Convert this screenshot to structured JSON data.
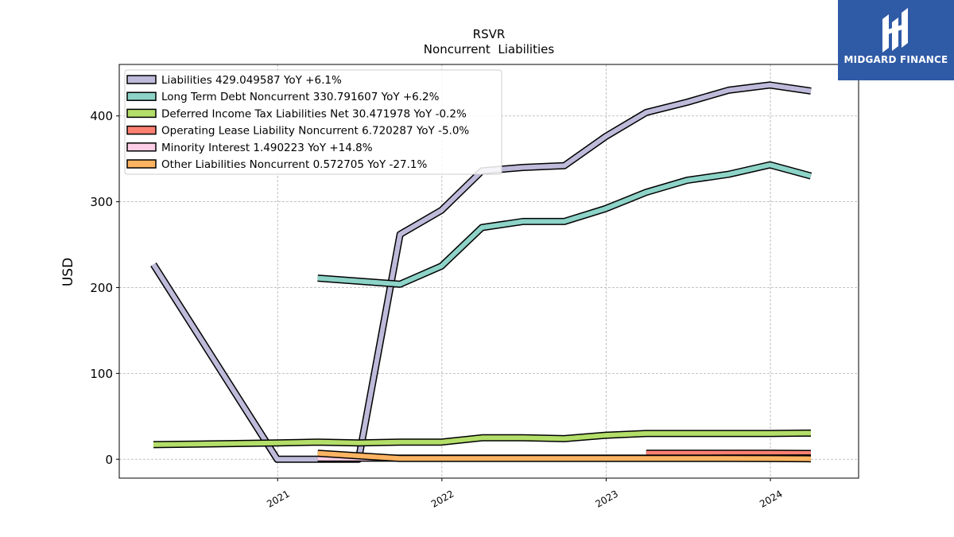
{
  "chart_data": {
    "type": "line",
    "title": "RSVR",
    "subtitle": "Noncurrent  Liabilities",
    "xlabel": "",
    "ylabel": "USD",
    "xlim": [
      "2020-01-15",
      "2024-07-15"
    ],
    "ylim": [
      -22,
      460
    ],
    "x_ticks": [
      "2021",
      "2022",
      "2023",
      "2024"
    ],
    "y_ticks": [
      0,
      100,
      200,
      300,
      400
    ],
    "grid": true,
    "legend_position": "top-left",
    "series": [
      {
        "name": "Liabilities",
        "legend": "Liabilities  429.049587 YoY +6.1%",
        "color": "#bebada",
        "points": [
          [
            "2020-03-31",
            227
          ],
          [
            "2020-12-31",
            0
          ],
          [
            "2021-03-31",
            0
          ],
          [
            "2021-06-30",
            0
          ],
          [
            "2021-09-30",
            262
          ],
          [
            "2021-12-31",
            290
          ],
          [
            "2022-03-31",
            336
          ],
          [
            "2022-06-30",
            340
          ],
          [
            "2022-09-30",
            342
          ],
          [
            "2022-12-31",
            376
          ],
          [
            "2023-03-31",
            404
          ],
          [
            "2023-06-30",
            416
          ],
          [
            "2023-09-30",
            430
          ],
          [
            "2023-12-31",
            436
          ],
          [
            "2024-03-31",
            429
          ]
        ]
      },
      {
        "name": "Long Term Debt Noncurrent",
        "legend": "Long Term Debt Noncurrent  330.791607 YoY +6.2%",
        "color": "#8dd3c7",
        "points": [
          [
            "2021-03-31",
            211
          ],
          [
            "2021-09-30",
            204
          ],
          [
            "2021-12-31",
            225
          ],
          [
            "2022-03-31",
            270
          ],
          [
            "2022-06-30",
            277
          ],
          [
            "2022-09-30",
            277
          ],
          [
            "2022-12-31",
            292
          ],
          [
            "2023-03-31",
            311
          ],
          [
            "2023-06-30",
            325
          ],
          [
            "2023-09-30",
            332
          ],
          [
            "2023-12-31",
            343
          ],
          [
            "2024-03-31",
            330
          ]
        ]
      },
      {
        "name": "Deferred Income Tax Liabilities Net",
        "legend": "Deferred Income Tax Liabilities Net  30.471978 YoY -0.2%",
        "color": "#b3de69",
        "points": [
          [
            "2020-03-31",
            17
          ],
          [
            "2020-12-31",
            19
          ],
          [
            "2021-03-31",
            20
          ],
          [
            "2021-06-30",
            19
          ],
          [
            "2021-09-30",
            20
          ],
          [
            "2021-12-31",
            20
          ],
          [
            "2022-03-31",
            25
          ],
          [
            "2022-06-30",
            25
          ],
          [
            "2022-09-30",
            24
          ],
          [
            "2022-12-31",
            28
          ],
          [
            "2023-03-31",
            30
          ],
          [
            "2023-06-30",
            30
          ],
          [
            "2023-09-30",
            30
          ],
          [
            "2023-12-31",
            30
          ],
          [
            "2024-03-31",
            30.5
          ]
        ]
      },
      {
        "name": "Operating Lease Liability Noncurrent",
        "legend": "Operating Lease Liability Noncurrent  6.720287 YoY -5.0%",
        "color": "#fb8072",
        "points": [
          [
            "2023-03-31",
            7
          ],
          [
            "2023-06-30",
            7
          ],
          [
            "2023-09-30",
            7
          ],
          [
            "2023-12-31",
            7
          ],
          [
            "2024-03-31",
            6.7
          ]
        ]
      },
      {
        "name": "Minority Interest",
        "legend": "Minority Interest  1.490223 YoY +14.8%",
        "color": "#fccde5",
        "points": [
          [
            "2021-03-31",
            1.3
          ],
          [
            "2021-06-30",
            1.3
          ],
          [
            "2021-09-30",
            1.3
          ],
          [
            "2021-12-31",
            1.3
          ],
          [
            "2022-03-31",
            1.3
          ],
          [
            "2022-06-30",
            1.3
          ],
          [
            "2022-09-30",
            1.3
          ],
          [
            "2022-12-31",
            1.3
          ],
          [
            "2023-03-31",
            1.3
          ],
          [
            "2023-06-30",
            1.3
          ],
          [
            "2023-09-30",
            1.4
          ],
          [
            "2023-12-31",
            1.4
          ],
          [
            "2024-03-31",
            1.5
          ]
        ]
      },
      {
        "name": "Other Liabilities Noncurrent",
        "legend": "Other Liabilities Noncurrent  0.572705 YoY -27.1%",
        "color": "#fdb462",
        "points": [
          [
            "2021-03-31",
            7
          ],
          [
            "2021-09-30",
            1
          ],
          [
            "2021-12-31",
            1
          ],
          [
            "2022-03-31",
            1
          ],
          [
            "2022-06-30",
            1
          ],
          [
            "2022-09-30",
            1
          ],
          [
            "2022-12-31",
            1
          ],
          [
            "2023-03-31",
            1
          ],
          [
            "2023-06-30",
            1
          ],
          [
            "2023-09-30",
            1
          ],
          [
            "2023-12-31",
            0.8
          ],
          [
            "2024-03-31",
            0.57
          ]
        ]
      }
    ]
  },
  "logo": {
    "text": "MIDGARD FINANCE",
    "background": "#2f5aa6"
  }
}
